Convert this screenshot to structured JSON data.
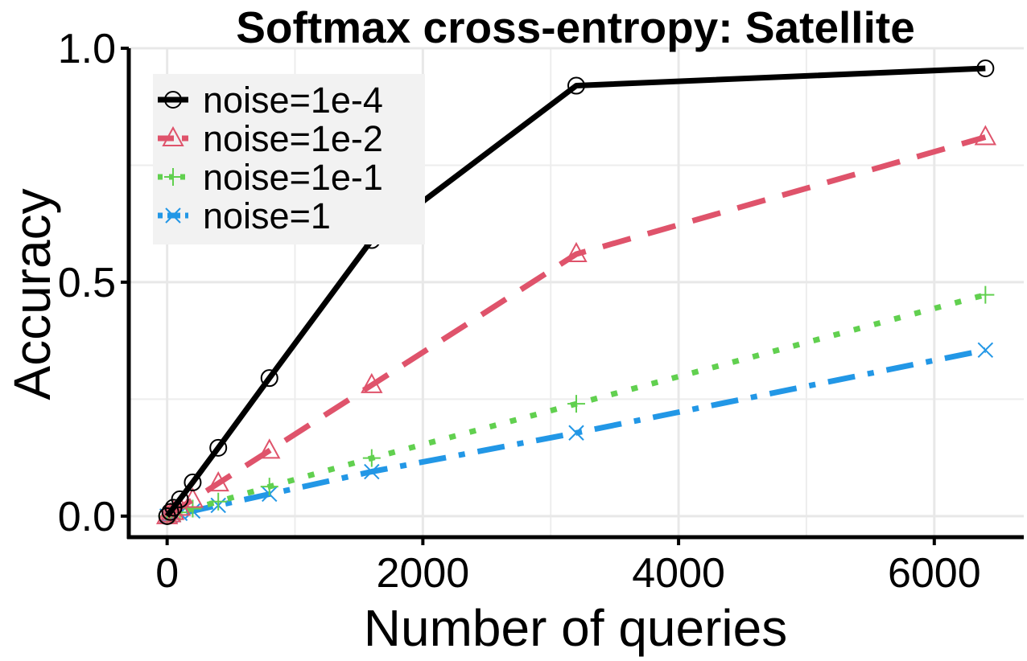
{
  "chart_data": {
    "type": "line",
    "title": "Softmax cross-entropy: Satellite",
    "xlabel": "Number of queries",
    "ylabel": "Accuracy",
    "xlim": [
      -300,
      6700
    ],
    "ylim": [
      -0.045,
      1.0
    ],
    "x_ticks": [
      0,
      2000,
      4000,
      6000
    ],
    "x_tick_labels": [
      "0",
      "2000",
      "4000",
      "6000"
    ],
    "y_ticks": [
      0.0,
      0.5,
      1.0
    ],
    "y_tick_labels": [
      "0.0",
      "0.5",
      "1.0"
    ],
    "grid": true,
    "legend_position": "top-left",
    "x": [
      0,
      25,
      50,
      100,
      200,
      400,
      800,
      1600,
      3200,
      6400
    ],
    "series": [
      {
        "name": "noise=1e-4",
        "color": "#000000",
        "marker": "circle",
        "dash": "solid",
        "values": [
          0.0,
          0.009,
          0.018,
          0.036,
          0.072,
          0.146,
          0.295,
          0.59,
          0.92,
          0.957
        ]
      },
      {
        "name": "noise=1e-2",
        "color": "#DF536B",
        "marker": "triangle",
        "dash": "dashed",
        "values": [
          0.0,
          0.004,
          0.009,
          0.018,
          0.035,
          0.07,
          0.14,
          0.28,
          0.56,
          0.81
        ]
      },
      {
        "name": "noise=1e-1",
        "color": "#61D04F",
        "marker": "plus",
        "dash": "dotted",
        "values": [
          0.0,
          0.002,
          0.004,
          0.008,
          0.016,
          0.031,
          0.063,
          0.124,
          0.24,
          0.473
        ]
      },
      {
        "name": "noise=1",
        "color": "#2297E6",
        "marker": "cross",
        "dash": "dotdash",
        "values": [
          0.0,
          0.001,
          0.003,
          0.006,
          0.011,
          0.023,
          0.047,
          0.095,
          0.178,
          0.355
        ]
      }
    ]
  }
}
